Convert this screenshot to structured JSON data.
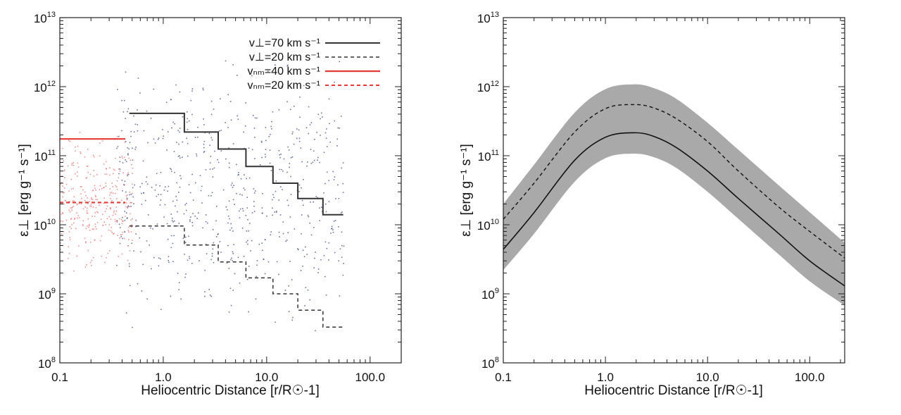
{
  "chart_data": [
    {
      "type": "line",
      "panel": "left",
      "xscale": "log",
      "yscale": "log",
      "xlim": [
        0.1,
        200
      ],
      "ylim": [
        100000000.0,
        10000000000000.0
      ],
      "xlabel": "Heliocentric Distance [r/R☉-1]",
      "ylabel": "ε⊥ [erg g⁻¹ s⁻¹]",
      "x_ticks": [
        0.1,
        1.0,
        10.0,
        100.0
      ],
      "x_tick_labels": [
        "0.1",
        "1.0",
        "10.0",
        "100.0"
      ],
      "y_ticks": [
        100000000.0,
        1000000000.0,
        10000000000.0,
        100000000000.0,
        1000000000000.0,
        10000000000000.0
      ],
      "y_tick_labels": [
        {
          "base": "10",
          "exp": "8"
        },
        {
          "base": "10",
          "exp": "9"
        },
        {
          "base": "10",
          "exp": "10"
        },
        {
          "base": "10",
          "exp": "11"
        },
        {
          "base": "10",
          "exp": "12"
        },
        {
          "base": "10",
          "exp": "13"
        }
      ],
      "legend_position": "top-right",
      "legend": [
        {
          "label": "v⊥=70 km s⁻¹",
          "color": "#333333",
          "style": "solid"
        },
        {
          "label": "v⊥=20 km s⁻¹",
          "color": "#333333",
          "style": "dashed"
        },
        {
          "label": "vₙₘ=40 km s⁻¹",
          "color": "#e53935",
          "style": "solid"
        },
        {
          "label": "vₙₘ=20 km s⁻¹",
          "color": "#e53935",
          "style": "dashed"
        }
      ],
      "series": [
        {
          "name": "v⊥=70 km s⁻¹",
          "style": "steps-solid",
          "color": "#333333",
          "bins": [
            [
              0.47,
              1.6
            ],
            [
              1.6,
              3.4
            ],
            [
              3.4,
              6.3
            ],
            [
              6.3,
              11.5
            ],
            [
              11.5,
              20
            ],
            [
              20,
              35
            ],
            [
              35,
              55
            ]
          ],
          "values": [
            410000000000.0,
            220000000000.0,
            125000000000.0,
            70000000000.0,
            40000000000.0,
            24000000000.0,
            14000000000.0
          ]
        },
        {
          "name": "v⊥=20 km s⁻¹",
          "style": "steps-dashed",
          "color": "#333333",
          "bins": [
            [
              0.47,
              1.6
            ],
            [
              1.6,
              3.4
            ],
            [
              3.4,
              6.3
            ],
            [
              6.3,
              11.5
            ],
            [
              11.5,
              20
            ],
            [
              20,
              35
            ],
            [
              35,
              55
            ]
          ],
          "values": [
            9600000000.0,
            5100000000.0,
            2900000000.0,
            1700000000.0,
            1000000000.0,
            580000000.0,
            330000000.0
          ]
        },
        {
          "name": "vₙₘ=40 km s⁻¹",
          "style": "hline-solid",
          "color": "#e53935",
          "x": [
            0.1,
            0.43
          ],
          "value": 175000000000.0
        },
        {
          "name": "vₙₘ=20 km s⁻¹",
          "style": "hline-dashed",
          "color": "#e53935",
          "x": [
            0.1,
            0.43
          ],
          "value": 21000000000.0
        }
      ],
      "scatter_clouds": [
        {
          "name": "red-points",
          "color": "#e57373",
          "x_range": [
            0.1,
            0.5
          ],
          "y_range": [
            2000000000.0,
            250000000000.0
          ],
          "count": 320,
          "seed": 7
        },
        {
          "name": "blue-points",
          "color": "#3b4a7a",
          "x_range": [
            0.35,
            55
          ],
          "y_range": [
            250000000.0,
            3000000000000.0
          ],
          "count": 650,
          "seed": 11
        }
      ]
    },
    {
      "type": "area",
      "panel": "right",
      "xscale": "log",
      "yscale": "log",
      "xlim": [
        0.1,
        220
      ],
      "ylim": [
        100000000.0,
        10000000000000.0
      ],
      "xlabel": "Heliocentric Distance [r/R☉-1]",
      "ylabel": "ε⊥ [erg g⁻¹ s⁻¹]",
      "x_ticks": [
        0.1,
        1.0,
        10.0,
        100.0
      ],
      "x_tick_labels": [
        "0.1",
        "1.0",
        "10.0",
        "100.0"
      ],
      "y_ticks": [
        100000000.0,
        1000000000.0,
        10000000000.0,
        100000000000.0,
        1000000000000.0,
        10000000000000.0
      ],
      "y_tick_labels": [
        {
          "base": "10",
          "exp": "8"
        },
        {
          "base": "10",
          "exp": "9"
        },
        {
          "base": "10",
          "exp": "10"
        },
        {
          "base": "10",
          "exp": "11"
        },
        {
          "base": "10",
          "exp": "12"
        },
        {
          "base": "10",
          "exp": "13"
        }
      ],
      "x": [
        0.1,
        0.2,
        0.5,
        1.0,
        1.9,
        3.0,
        5.0,
        10.0,
        20.0,
        50.0,
        100.0,
        220.0
      ],
      "series": [
        {
          "name": "upper-bound",
          "values": [
            20000000000.0,
            74000000000.0,
            420000000000.0,
            920000000000.0,
            1080000000000.0,
            950000000000.0,
            660000000000.0,
            300000000000.0,
            122000000000.0,
            37000000000.0,
            15200000000.0,
            5500000000.0
          ]
        },
        {
          "name": "lower-bound",
          "values": [
            2200000000.0,
            7400000000.0,
            42000000000.0,
            92000000000.0,
            107000000000.0,
            95000000000.0,
            66000000000.0,
            30000000000.0,
            12200000000.0,
            3700000000.0,
            1520000000.0,
            680000000.0
          ]
        },
        {
          "name": "dashed-curve",
          "style": "dashed",
          "values": [
            12000000000.0,
            40000000000.0,
            220000000000.0,
            480000000000.0,
            550000000000.0,
            490000000000.0,
            340000000000.0,
            160000000000.0,
            60000000000.0,
            18000000000.0,
            8000000000.0,
            3300000000.0
          ]
        },
        {
          "name": "solid-curve",
          "style": "solid",
          "values": [
            4400000000.0,
            15000000000.0,
            86000000000.0,
            185000000000.0,
            215000000000.0,
            190000000000.0,
            130000000000.0,
            60000000000.0,
            24000000000.0,
            7400000000.0,
            3000000000.0,
            1300000000.0
          ]
        }
      ],
      "band_color": "#a9a9a9"
    }
  ]
}
